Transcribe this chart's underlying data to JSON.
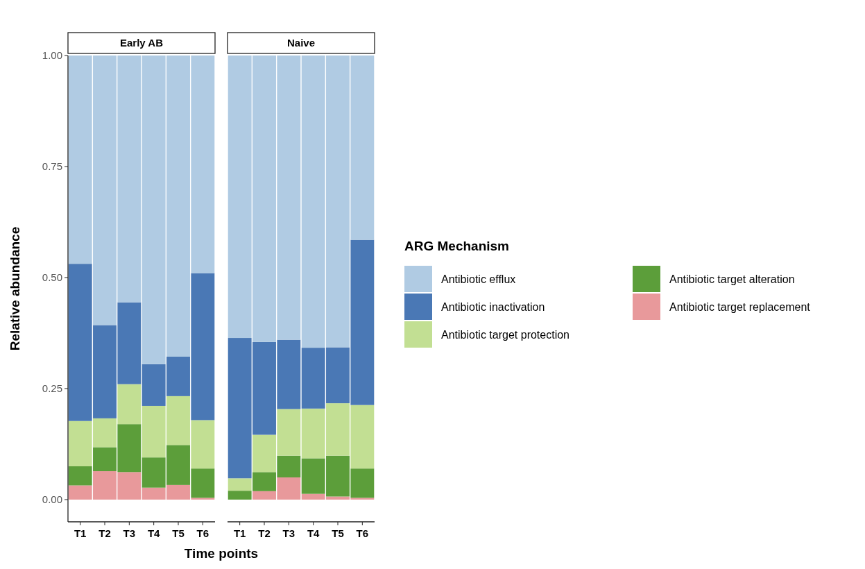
{
  "chart_data": [
    {
      "type": "bar",
      "title": "Early AB",
      "xlabel": "Time points",
      "ylabel": "Relative abundance",
      "stacked": true,
      "categories": [
        "T1",
        "T2",
        "T3",
        "T4",
        "T5",
        "T6"
      ],
      "ylim": [
        -0.05,
        1
      ],
      "yticks": [
        {
          "value": 0,
          "label": "0.00"
        },
        {
          "value": 0.25,
          "label": "0.25"
        },
        {
          "value": 0.5,
          "label": "0.50"
        },
        {
          "value": 0.75,
          "label": "0.75"
        },
        {
          "value": 1,
          "label": "1.00"
        }
      ],
      "legend": "right",
      "legend_title": "ARG Mechanism",
      "series": [
        {
          "name": "Antibiotic target replacement",
          "color": "#e8999b",
          "values": [
            0.032,
            0.064,
            0.062,
            0.027,
            0.033,
            0.004
          ]
        },
        {
          "name": "Antibiotic target alteration",
          "color": "#5c9e3a",
          "values": [
            0.043,
            0.054,
            0.108,
            0.068,
            0.09,
            0.066
          ]
        },
        {
          "name": "Antibiotic target protection",
          "color": "#c2df93",
          "values": [
            0.102,
            0.065,
            0.09,
            0.116,
            0.11,
            0.109
          ]
        },
        {
          "name": "Antibiotic inactivation",
          "color": "#4a78b5",
          "values": [
            0.354,
            0.21,
            0.184,
            0.094,
            0.089,
            0.331
          ]
        },
        {
          "name": "Antibiotic efflux",
          "color": "#b0cbe3",
          "values": [
            0.469,
            0.607,
            0.556,
            0.695,
            0.678,
            0.49
          ]
        }
      ]
    },
    {
      "type": "bar",
      "title": "Naive",
      "stacked": true,
      "categories": [
        "T1",
        "T2",
        "T3",
        "T4",
        "T5",
        "T6"
      ],
      "ylim": [
        -0.05,
        1
      ],
      "tick_labels": "x",
      "series": [
        {
          "color": "#e8999b",
          "values": [
            0,
            0.019,
            0.05,
            0.013,
            0.007,
            0.004
          ]
        },
        {
          "color": "#5c9e3a",
          "values": [
            0.02,
            0.043,
            0.049,
            0.08,
            0.092,
            0.066
          ]
        },
        {
          "color": "#c2df93",
          "values": [
            0.028,
            0.084,
            0.105,
            0.112,
            0.118,
            0.143
          ]
        },
        {
          "color": "#4a78b5",
          "values": [
            0.316,
            0.209,
            0.156,
            0.137,
            0.126,
            0.372
          ]
        },
        {
          "color": "#b0cbe3",
          "values": [
            0.636,
            0.645,
            0.64,
            0.658,
            0.657,
            0.415
          ]
        }
      ]
    }
  ]
}
